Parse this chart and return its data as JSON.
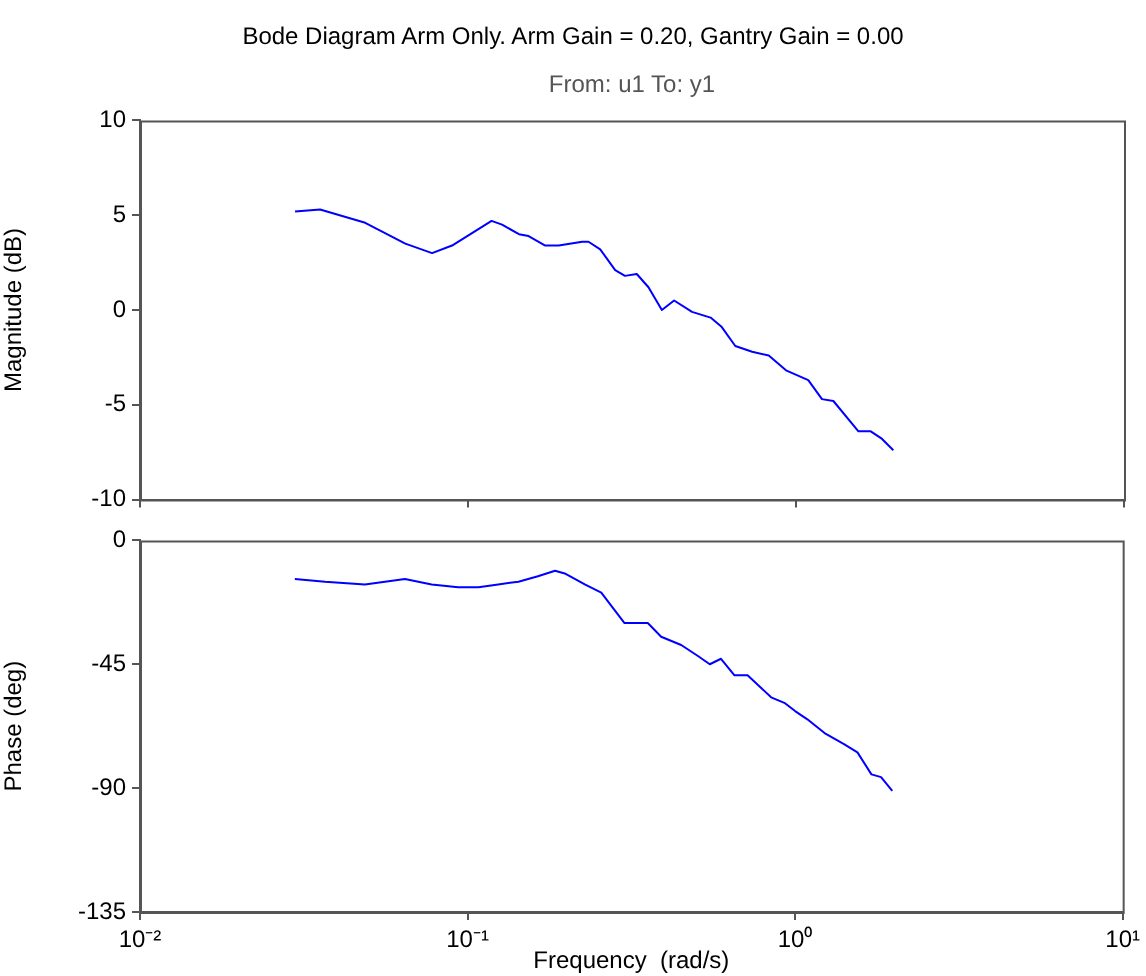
{
  "chart_data": [
    {
      "type": "line",
      "title": "Bode Diagram Arm Only. Arm Gain = 0.20, Gantry Gain = 0.00",
      "subtitle": "From: u1  To: y1",
      "ylabel": "Magnitude (dB)",
      "log": "x",
      "grid": false,
      "marker": "none",
      "line_style": "solid",
      "tick_labels": "y",
      "xlim": [
        0.01,
        10
      ],
      "xticks": [
        {
          "value": 0.01,
          "label": null
        },
        {
          "value": 0.1,
          "label": null
        },
        {
          "value": 1,
          "label": null
        },
        {
          "value": 10,
          "label": null
        }
      ],
      "ylim": [
        -10,
        10
      ],
      "yticks": [
        -10,
        -5,
        0,
        5,
        10
      ],
      "x": [
        0.0297,
        0.0354,
        0.0486,
        0.0644,
        0.0777,
        0.0894,
        0.118,
        0.127,
        0.143,
        0.153,
        0.172,
        0.189,
        0.223,
        0.233,
        0.253,
        0.281,
        0.301,
        0.327,
        0.355,
        0.39,
        0.425,
        0.482,
        0.549,
        0.594,
        0.653,
        0.735,
        0.826,
        0.936,
        1.09,
        1.2,
        1.3,
        1.55,
        1.69,
        1.83,
        1.98
      ],
      "series": [
        {
          "color": "#0000ff",
          "values": [
            5.2,
            5.3,
            4.6,
            3.5,
            3.0,
            3.4,
            4.7,
            4.5,
            4.0,
            3.9,
            3.4,
            3.4,
            3.6,
            3.6,
            3.2,
            2.1,
            1.8,
            1.9,
            1.2,
            0.0,
            0.5,
            -0.1,
            -0.4,
            -0.9,
            -1.9,
            -2.2,
            -2.4,
            -3.2,
            -3.7,
            -4.7,
            -4.8,
            -6.4,
            -6.4,
            -6.8,
            -7.4
          ]
        }
      ]
    },
    {
      "type": "line",
      "xlabel": "Frequency  (rad/s)",
      "ylabel": "Phase (deg)",
      "log": "x",
      "grid": false,
      "marker": "none",
      "line_style": "solid",
      "xlim": [
        0.01,
        10
      ],
      "xticks": [
        {
          "value": 0.01,
          "label": "10⁻²"
        },
        {
          "value": 0.1,
          "label": "10⁻¹"
        },
        {
          "value": 1,
          "label": "10⁰"
        },
        {
          "value": 10,
          "label": "10¹"
        }
      ],
      "ylim": [
        -135,
        0
      ],
      "yticks": [
        -135,
        -90,
        -45,
        0
      ],
      "x": [
        0.0297,
        0.0367,
        0.0486,
        0.0644,
        0.0777,
        0.0936,
        0.108,
        0.124,
        0.143,
        0.164,
        0.185,
        0.198,
        0.228,
        0.256,
        0.301,
        0.324,
        0.355,
        0.39,
        0.449,
        0.505,
        0.549,
        0.594,
        0.653,
        0.716,
        0.845,
        0.927,
        1.0,
        1.09,
        1.23,
        1.41,
        1.55,
        1.71,
        1.83,
        1.98
      ],
      "series": [
        {
          "color": "#0000ff",
          "values": [
            -14,
            -15,
            -16,
            -14,
            -16,
            -17,
            -17,
            -16,
            -15,
            -13,
            -11,
            -12,
            -16,
            -19,
            -30,
            -30,
            -30,
            -35,
            -38,
            -42,
            -45,
            -43,
            -49,
            -49,
            -57,
            -59,
            -62,
            -65,
            -70,
            -74,
            -77,
            -85,
            -86,
            -91
          ]
        }
      ]
    }
  ]
}
